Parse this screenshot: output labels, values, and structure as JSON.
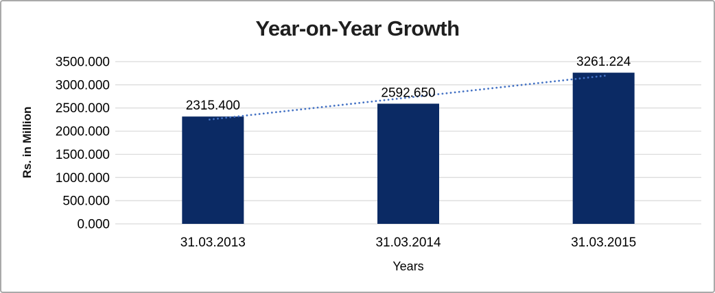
{
  "window": {
    "background": "#ffffff",
    "border_color": "#a9a9a9"
  },
  "chart_data": {
    "type": "bar",
    "title": "Year-on-Year Growth",
    "xlabel": "Years",
    "ylabel": "Rs. in Million",
    "categories": [
      "31.03.2013",
      "31.03.2014",
      "31.03.2015"
    ],
    "values": [
      2315.4,
      2592.65,
      3261.224
    ],
    "value_labels": [
      "2315.400",
      "2592.650",
      "3261.224"
    ],
    "ylim": [
      0,
      3500
    ],
    "ytick_step": 500,
    "ytick_decimals": 3,
    "ytick_labels": [
      "0.000",
      "500.000",
      "1000.000",
      "1500.000",
      "2000.000",
      "2500.000",
      "3000.000",
      "3500.000"
    ],
    "grid": "horizontal",
    "gridline_color": "#d9d9d9",
    "bar_color": "#0b2a64",
    "text_color": "#000000",
    "title_color": "#1f1f1f",
    "legend": "none",
    "trendline": {
      "show": true,
      "style": "dotted",
      "color": "#4472c4",
      "fit": "linear"
    }
  }
}
